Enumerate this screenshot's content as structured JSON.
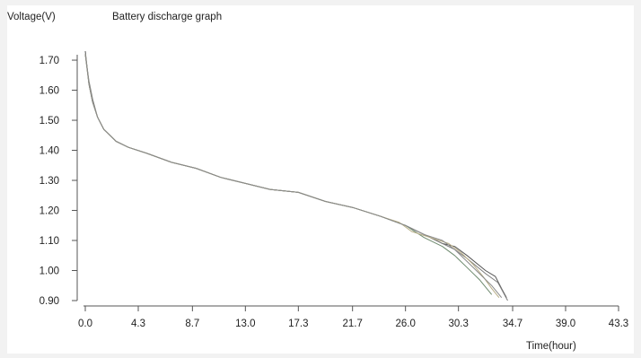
{
  "chart_data": {
    "type": "line",
    "title": "Battery discharge graph",
    "ylabel": "Voltage(V)",
    "xlabel": "Time(hour)",
    "xlim": [
      0.0,
      43.3
    ],
    "ylim": [
      0.9,
      1.73
    ],
    "xticks": [
      "0.0",
      "4.3",
      "8.7",
      "13.0",
      "17.3",
      "21.7",
      "26.0",
      "30.3",
      "34.7",
      "39.0",
      "43.3"
    ],
    "yticks": [
      "0.90",
      "1.00",
      "1.10",
      "1.20",
      "1.30",
      "1.40",
      "1.50",
      "1.60",
      "1.70"
    ],
    "grid": false,
    "legend": "none",
    "series": [
      {
        "color": "#555555",
        "x": [
          0.0,
          0.3,
          0.6,
          1.0,
          1.5,
          2.5,
          3.5,
          5.0,
          7.0,
          9.0,
          11.0,
          13.0,
          15.0,
          17.3,
          19.5,
          21.7,
          24.0,
          26.0,
          27.5,
          29.0,
          30.0,
          31.0,
          32.5,
          33.3,
          33.8,
          34.2
        ],
        "y": [
          1.73,
          1.62,
          1.56,
          1.51,
          1.47,
          1.43,
          1.41,
          1.39,
          1.36,
          1.34,
          1.31,
          1.29,
          1.27,
          1.26,
          1.23,
          1.21,
          1.18,
          1.15,
          1.12,
          1.09,
          1.08,
          1.05,
          1.0,
          0.98,
          0.94,
          0.91
        ]
      },
      {
        "color": "#7a7a7a",
        "x": [
          0.0,
          0.3,
          0.6,
          1.0,
          1.5,
          2.5,
          3.5,
          5.0,
          7.0,
          9.0,
          11.0,
          13.0,
          15.0,
          17.3,
          19.5,
          21.7,
          24.0,
          26.0,
          27.5,
          29.0,
          30.0,
          31.0,
          32.5,
          33.5,
          34.3
        ],
        "y": [
          1.72,
          1.63,
          1.57,
          1.51,
          1.47,
          1.43,
          1.41,
          1.39,
          1.36,
          1.34,
          1.31,
          1.29,
          1.27,
          1.26,
          1.23,
          1.21,
          1.18,
          1.15,
          1.12,
          1.09,
          1.07,
          1.04,
          0.99,
          0.96,
          0.9
        ]
      },
      {
        "color": "#6e8a6e",
        "x": [
          0.0,
          0.3,
          0.6,
          1.0,
          1.5,
          2.5,
          3.5,
          5.0,
          7.0,
          9.0,
          11.0,
          13.0,
          15.0,
          17.3,
          19.5,
          21.7,
          24.0,
          26.0,
          27.5,
          29.0,
          30.0,
          31.0,
          32.0,
          33.0
        ],
        "y": [
          1.72,
          1.62,
          1.56,
          1.51,
          1.47,
          1.43,
          1.41,
          1.39,
          1.36,
          1.34,
          1.31,
          1.29,
          1.27,
          1.26,
          1.23,
          1.21,
          1.18,
          1.15,
          1.11,
          1.08,
          1.05,
          1.01,
          0.97,
          0.92
        ]
      },
      {
        "color": "#b8ae86",
        "x": [
          0.0,
          0.3,
          0.6,
          1.0,
          1.5,
          2.5,
          3.5,
          5.0,
          7.0,
          9.0,
          11.0,
          13.0,
          15.0,
          17.3,
          19.5,
          21.7,
          24.0,
          25.5,
          26.5,
          28.0,
          29.5,
          30.5,
          31.5,
          32.3,
          33.0,
          33.6
        ],
        "y": [
          1.72,
          1.62,
          1.56,
          1.51,
          1.47,
          1.43,
          1.41,
          1.39,
          1.36,
          1.34,
          1.31,
          1.29,
          1.27,
          1.26,
          1.23,
          1.21,
          1.18,
          1.16,
          1.13,
          1.11,
          1.09,
          1.06,
          1.02,
          0.98,
          0.94,
          0.91
        ]
      },
      {
        "color": "#8a8a8a",
        "x": [
          0.0,
          0.3,
          0.6,
          1.0,
          1.5,
          2.5,
          3.5,
          5.0,
          7.0,
          9.0,
          11.0,
          13.0,
          15.0,
          17.3,
          19.5,
          21.7,
          24.0,
          26.0,
          27.5,
          29.0,
          30.0,
          31.0,
          32.0,
          33.0,
          33.8
        ],
        "y": [
          1.72,
          1.62,
          1.56,
          1.51,
          1.47,
          1.43,
          1.41,
          1.39,
          1.36,
          1.34,
          1.31,
          1.29,
          1.27,
          1.26,
          1.23,
          1.21,
          1.18,
          1.15,
          1.12,
          1.1,
          1.07,
          1.03,
          0.99,
          0.95,
          0.91
        ]
      }
    ]
  }
}
